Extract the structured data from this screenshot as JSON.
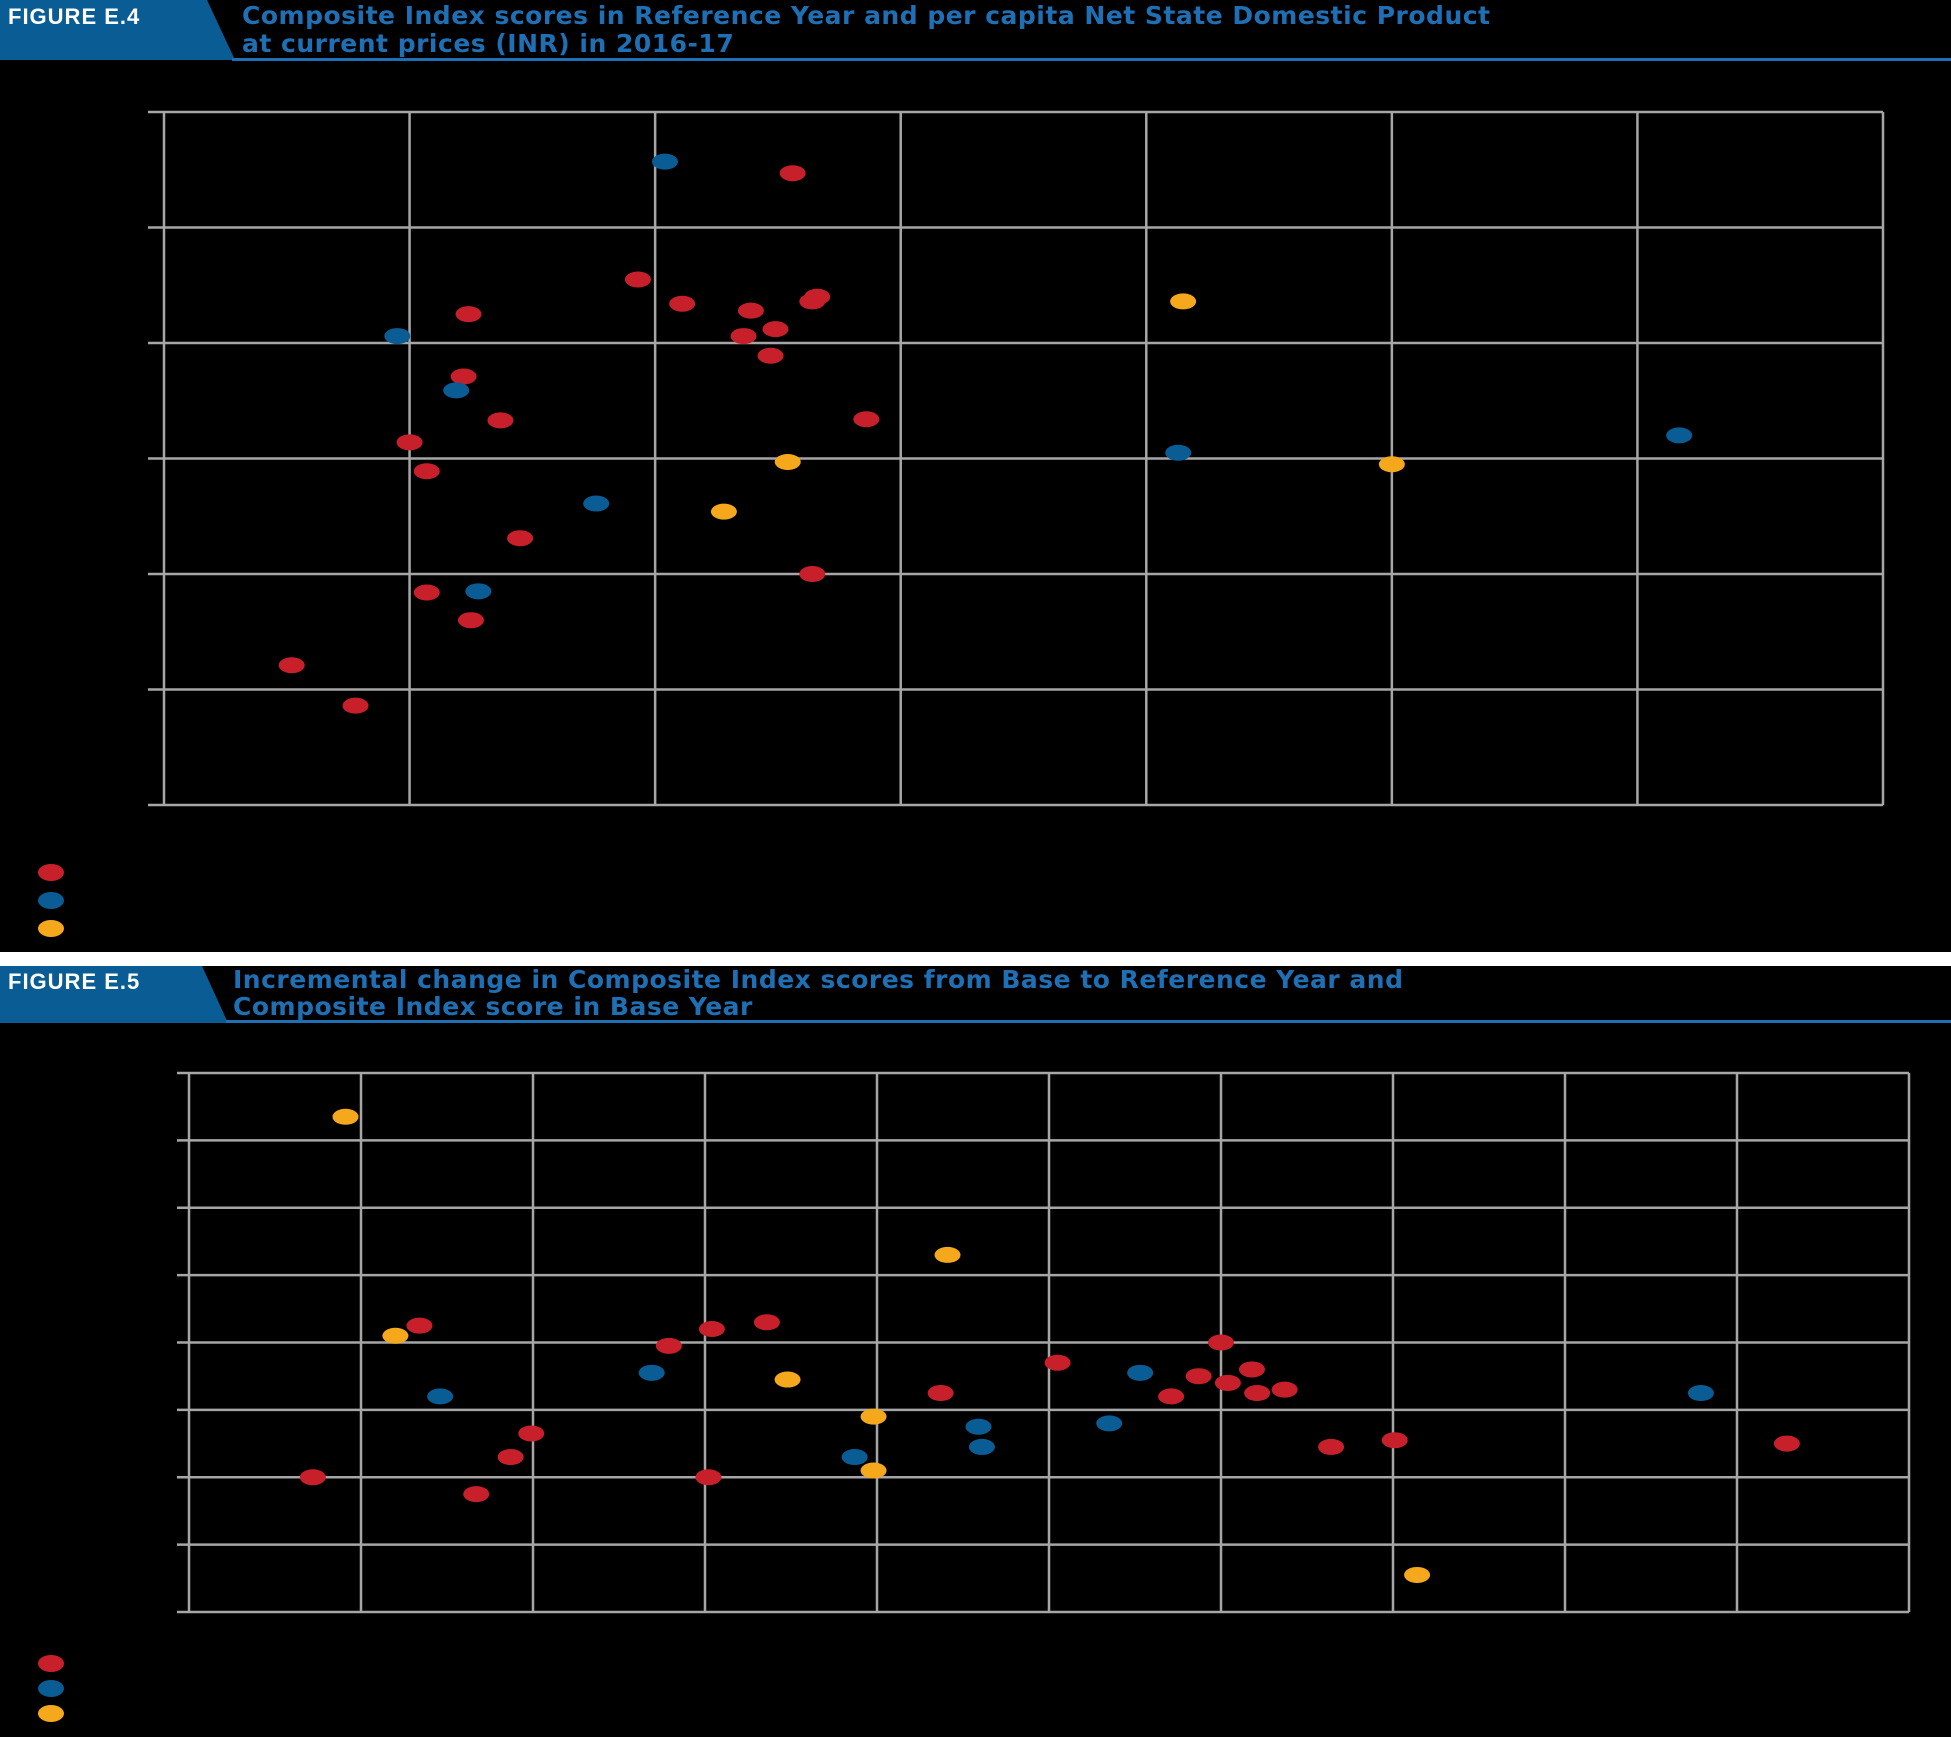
{
  "colors": {
    "group_red": "#c8202b",
    "group_blue": "#0a5c94",
    "group_yellow": "#f5a81c",
    "header_blue": "#0a5c94",
    "title_blue": "#1e6fb3",
    "grid": "#a6a6a6"
  },
  "figures": [
    {
      "label": "FIGURE E.4",
      "title_line1": "Composite Index scores in Reference Year and per capita Net State Domestic Product",
      "title_line2": "at current prices (INR) in 2016-17"
    },
    {
      "label": "FIGURE E.5",
      "title_line1": "Incremental change in Composite Index scores from Base to Reference Year and",
      "title_line2": "Composite Index score in Base Year"
    }
  ],
  "chart_data": [
    {
      "type": "scatter",
      "title": "Composite Index scores in Reference Year and per capita Net State Domestic Product at current prices (INR) in 2016-17",
      "xlabel": "",
      "ylabel": "",
      "grid": true,
      "x_divisions": 7,
      "y_divisions": 6,
      "legend_placement": "bottom-left",
      "series": [
        {
          "color_key": "group_red",
          "points": [
            [
              0.52,
              1.21
            ],
            [
              0.78,
              0.86
            ],
            [
              1.0,
              3.14
            ],
            [
              1.07,
              2.89
            ],
            [
              1.07,
              1.84
            ],
            [
              1.25,
              1.6
            ],
            [
              1.22,
              3.71
            ],
            [
              1.24,
              4.25
            ],
            [
              1.37,
              3.33
            ],
            [
              1.45,
              2.31
            ],
            [
              1.93,
              4.55
            ],
            [
              2.11,
              4.34
            ],
            [
              2.36,
              4.06
            ],
            [
              2.39,
              4.28
            ],
            [
              2.47,
              3.89
            ],
            [
              2.49,
              4.12
            ],
            [
              2.56,
              5.47
            ],
            [
              2.64,
              4.36
            ],
            [
              2.66,
              4.4
            ],
            [
              2.64,
              2.0
            ],
            [
              2.86,
              3.34
            ]
          ]
        },
        {
          "color_key": "group_blue",
          "points": [
            [
              0.95,
              4.06
            ],
            [
              1.19,
              3.59
            ],
            [
              1.28,
              1.85
            ],
            [
              1.76,
              2.61
            ],
            [
              2.04,
              5.57
            ],
            [
              4.13,
              3.05
            ],
            [
              6.17,
              3.2
            ]
          ]
        },
        {
          "color_key": "group_yellow",
          "points": [
            [
              2.28,
              2.54
            ],
            [
              2.54,
              2.97
            ],
            [
              4.15,
              4.36
            ],
            [
              5.0,
              2.95
            ]
          ]
        }
      ]
    },
    {
      "type": "scatter",
      "title": "Incremental change in Composite Index scores from Base to Reference Year and Composite Index score in Base Year",
      "xlabel": "",
      "ylabel": "",
      "grid": true,
      "x_divisions": 10,
      "y_divisions": 8,
      "legend_placement": "bottom-left",
      "series": [
        {
          "color_key": "group_red",
          "points": [
            [
              0.72,
              2.0
            ],
            [
              1.34,
              4.25
            ],
            [
              1.67,
              1.75
            ],
            [
              1.87,
              2.3
            ],
            [
              1.99,
              2.65
            ],
            [
              2.79,
              3.95
            ],
            [
              3.02,
              2.0
            ],
            [
              3.04,
              4.2
            ],
            [
              3.36,
              4.3
            ],
            [
              4.37,
              3.25
            ],
            [
              5.05,
              3.7
            ],
            [
              5.71,
              3.2
            ],
            [
              5.87,
              3.5
            ],
            [
              6.0,
              4.0
            ],
            [
              6.04,
              3.4
            ],
            [
              6.18,
              3.6
            ],
            [
              6.21,
              3.25
            ],
            [
              6.37,
              3.3
            ],
            [
              6.64,
              2.45
            ],
            [
              7.01,
              2.55
            ],
            [
              9.29,
              2.5
            ]
          ]
        },
        {
          "color_key": "group_blue",
          "points": [
            [
              1.46,
              3.2
            ],
            [
              2.69,
              3.55
            ],
            [
              3.87,
              2.3
            ],
            [
              4.59,
              2.75
            ],
            [
              4.61,
              2.45
            ],
            [
              5.35,
              2.8
            ],
            [
              5.53,
              3.55
            ],
            [
              8.79,
              3.25
            ]
          ]
        },
        {
          "color_key": "group_yellow",
          "points": [
            [
              0.91,
              7.35
            ],
            [
              1.2,
              4.1
            ],
            [
              3.48,
              3.45
            ],
            [
              3.98,
              2.9
            ],
            [
              3.98,
              2.1
            ],
            [
              4.41,
              5.3
            ],
            [
              7.14,
              0.55
            ]
          ]
        }
      ]
    }
  ]
}
